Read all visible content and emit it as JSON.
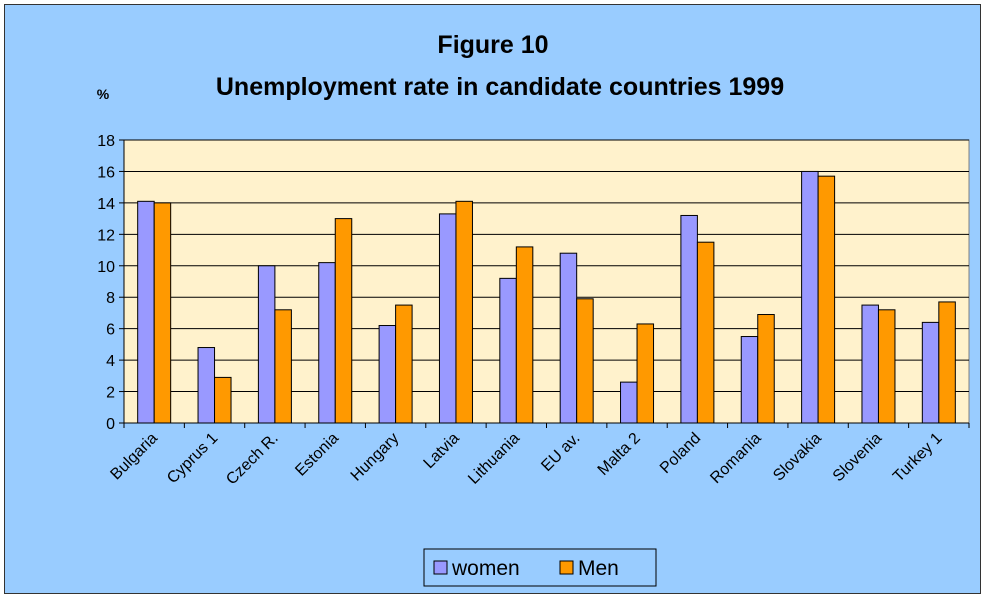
{
  "chart_data": {
    "type": "bar",
    "title": "Figure 10",
    "subtitle_prefix": "%",
    "subtitle": "Unemployment rate in candidate countries 1999",
    "categories": [
      "Bulgaria",
      "Cyprus 1",
      "Czech R.",
      "Estonia",
      "Hungary",
      "Latvia",
      "Lithuania",
      "EU av.",
      "Malta 2",
      "Poland",
      "Romania",
      "Slovakia",
      "Slovenia",
      "Turkey 1"
    ],
    "series": [
      {
        "name": "women",
        "color": "#9999ff",
        "values": [
          14.1,
          4.8,
          10.0,
          10.2,
          6.2,
          13.3,
          9.2,
          10.8,
          2.6,
          13.2,
          5.5,
          16.0,
          7.5,
          6.4
        ]
      },
      {
        "name": "Men",
        "color": "#ff9900",
        "values": [
          14.0,
          2.9,
          7.2,
          13.0,
          7.5,
          14.1,
          11.2,
          7.9,
          6.3,
          11.5,
          6.9,
          15.7,
          7.2,
          7.7
        ]
      }
    ],
    "ylim": [
      0,
      18
    ],
    "yticks": [
      0,
      2,
      4,
      6,
      8,
      10,
      12,
      14,
      16,
      18
    ],
    "grid": true,
    "plot_background": "#fff2cc",
    "chart_background": "#99ccff",
    "legend_position": "bottom"
  }
}
